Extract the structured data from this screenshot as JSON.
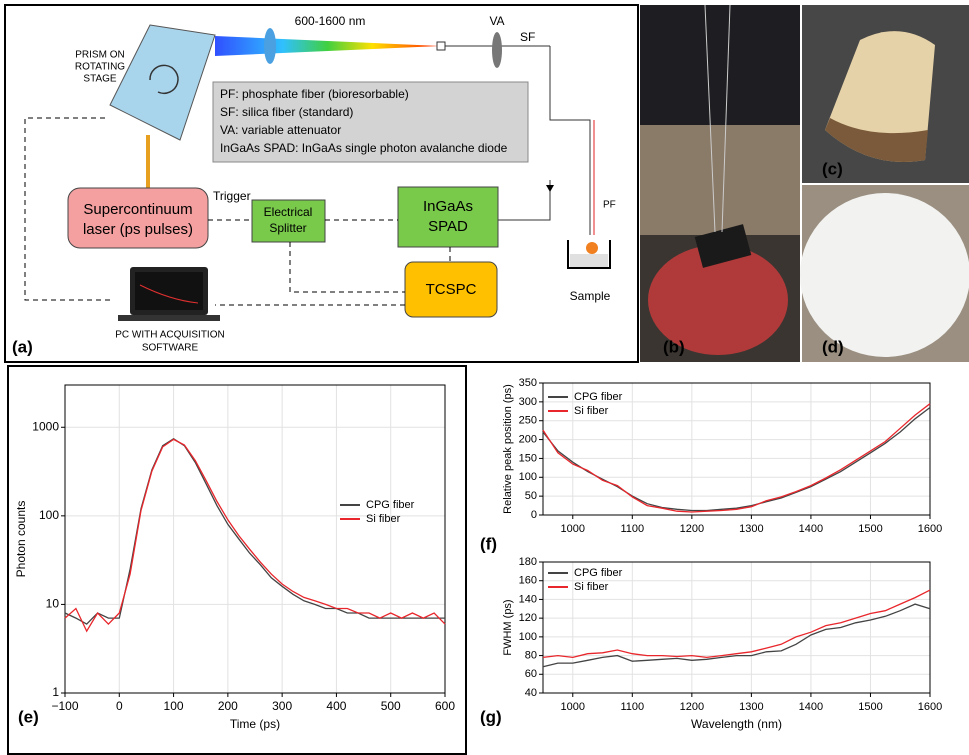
{
  "diagram": {
    "panel_label": "(a)",
    "prism": [
      "PRISM ON",
      "ROTATING",
      "STAGE"
    ],
    "wavelength": "600-1600 nm",
    "va": "VA",
    "sf": "SF",
    "pf": "PF",
    "notes": [
      "PF: phosphate fiber (bioresorbable)",
      "SF: silica fiber (standard)",
      "VA: variable attenuator",
      "InGaAs SPAD: InGaAs single photon avalanche diode"
    ],
    "trigger": "Trigger",
    "laser": [
      "Supercontinuum",
      "laser (ps pulses)"
    ],
    "splitter": [
      "Electrical",
      "Splitter"
    ],
    "spad": [
      "InGaAs",
      "SPAD"
    ],
    "tcspc": "TCSPC",
    "sample": "Sample",
    "pc": [
      "PC WITH ACQUISITION",
      "SOFTWARE"
    ]
  },
  "photos": [
    {
      "label": "(b)"
    },
    {
      "label": "(c)"
    },
    {
      "label": "(d)"
    }
  ],
  "chart_data": [
    {
      "type": "line",
      "panel_label": "(e)",
      "x_label": "Time (ps)",
      "y_label": "Photon counts",
      "log_y": true,
      "grid": true,
      "legend": "right",
      "x": [
        -100,
        -80,
        -60,
        -40,
        -20,
        0,
        20,
        40,
        60,
        80,
        100,
        120,
        140,
        160,
        180,
        200,
        220,
        240,
        260,
        280,
        300,
        320,
        340,
        360,
        380,
        400,
        420,
        440,
        460,
        480,
        500,
        520,
        540,
        560,
        580,
        600
      ],
      "series": [
        {
          "name": "CPG fiber",
          "color": "#444444",
          "values": [
            8,
            7,
            6,
            8,
            7,
            7,
            25,
            120,
            330,
            620,
            740,
            620,
            400,
            230,
            130,
            80,
            55,
            38,
            28,
            20,
            16,
            13,
            11,
            10,
            9,
            9,
            8,
            8,
            7,
            7,
            7,
            7,
            7,
            7,
            7,
            7
          ]
        },
        {
          "name": "Si fiber",
          "color": "#e8262b",
          "values": [
            7,
            9,
            5,
            8,
            6,
            8,
            22,
            115,
            320,
            600,
            730,
            630,
            420,
            250,
            145,
            90,
            60,
            42,
            30,
            22,
            17,
            14,
            12,
            11,
            10,
            9,
            9,
            8,
            8,
            7,
            8,
            7,
            8,
            7,
            8,
            6
          ]
        }
      ],
      "xlim": [
        -100,
        600
      ],
      "xticks": [
        {
          "value": -100,
          "label": "−100"
        },
        0,
        100,
        200,
        300,
        400,
        500,
        600
      ],
      "ylim": [
        1,
        3000
      ],
      "yticks": [
        1,
        10,
        100,
        1000
      ]
    },
    {
      "type": "line",
      "panel_label": "(f)",
      "y_label": "Relative peak position (ps)",
      "grid": true,
      "legend": "top-left",
      "x": [
        950,
        975,
        1000,
        1025,
        1050,
        1075,
        1100,
        1125,
        1150,
        1175,
        1200,
        1225,
        1250,
        1275,
        1300,
        1325,
        1350,
        1375,
        1400,
        1425,
        1450,
        1475,
        1500,
        1525,
        1550,
        1575,
        1600
      ],
      "series": [
        {
          "name": "CPG fiber",
          "color": "#444444",
          "values": [
            220,
            170,
            140,
            115,
            95,
            75,
            50,
            30,
            20,
            15,
            12,
            12,
            15,
            18,
            25,
            35,
            45,
            60,
            75,
            95,
            115,
            140,
            165,
            190,
            220,
            255,
            285
          ]
        },
        {
          "name": "Si fiber",
          "color": "#e8262b",
          "values": [
            225,
            165,
            135,
            118,
            92,
            78,
            48,
            25,
            18,
            10,
            8,
            10,
            12,
            15,
            22,
            38,
            48,
            62,
            78,
            98,
            120,
            145,
            170,
            195,
            230,
            265,
            295
          ]
        }
      ],
      "xlim": [
        950,
        1600
      ],
      "xticks": [
        1000,
        1100,
        1200,
        1300,
        1400,
        1500,
        1600
      ],
      "ylim": [
        0,
        350
      ],
      "yticks": [
        0,
        50,
        100,
        150,
        200,
        250,
        300,
        350
      ]
    },
    {
      "type": "line",
      "panel_label": "(g)",
      "x_label": "Wavelength (nm)",
      "y_label": "FWHM (ps)",
      "grid": true,
      "legend": "top-left",
      "x": [
        950,
        975,
        1000,
        1025,
        1050,
        1075,
        1100,
        1125,
        1150,
        1175,
        1200,
        1225,
        1250,
        1275,
        1300,
        1325,
        1350,
        1375,
        1400,
        1425,
        1450,
        1475,
        1500,
        1525,
        1550,
        1575,
        1600
      ],
      "series": [
        {
          "name": "CPG fiber",
          "color": "#444444",
          "values": [
            68,
            72,
            72,
            75,
            78,
            80,
            74,
            75,
            76,
            77,
            75,
            76,
            78,
            80,
            80,
            84,
            85,
            92,
            102,
            108,
            110,
            115,
            118,
            122,
            128,
            135,
            130
          ]
        },
        {
          "name": "Si fiber",
          "color": "#e8262b",
          "values": [
            78,
            80,
            78,
            82,
            83,
            86,
            82,
            80,
            80,
            79,
            80,
            78,
            80,
            82,
            84,
            88,
            92,
            100,
            105,
            112,
            115,
            120,
            125,
            128,
            135,
            142,
            150
          ]
        }
      ],
      "xlim": [
        950,
        1600
      ],
      "xticks": [
        1000,
        1100,
        1200,
        1300,
        1400,
        1500,
        1600
      ],
      "ylim": [
        40,
        180
      ],
      "yticks": [
        40,
        60,
        80,
        100,
        120,
        140,
        160,
        180
      ]
    }
  ]
}
